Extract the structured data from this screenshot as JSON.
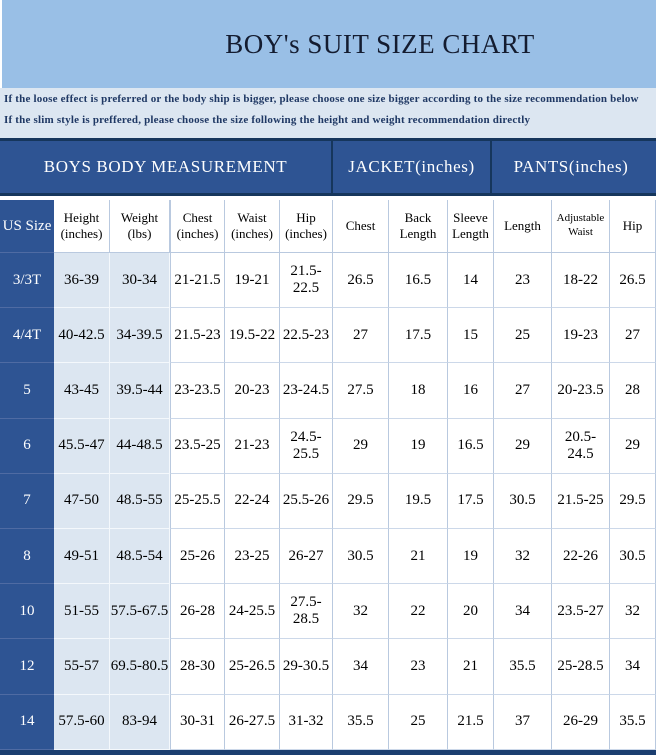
{
  "page": {
    "title": "BOY's SUIT SIZE CHART"
  },
  "notes": {
    "line1": "If the loose effect is preferred or the body ship is bigger, please choose one size bigger according to the size recommendation below",
    "line2": "If the slim style is preffered, please choose the size following the height and weight recommendation directly"
  },
  "colors": {
    "banner_blue": "#99bfe6",
    "notes_bg": "#dce6f1",
    "header_navy": "#2e5493",
    "dark_border": "#16365c",
    "light_cell": "#dce6f1",
    "grid_line": "#b9c9df"
  },
  "table": {
    "groups": [
      "BOYS BODY MEASUREMENT",
      "JACKET(inches)",
      "PANTS(inches)"
    ],
    "columns": [
      "US Size",
      "Height\n(inches)",
      "Weight (lbs)",
      "Chest\n(inches)",
      "Waist\n(inches)",
      "Hip\n(inches)",
      "Chest",
      "Back\nLength",
      "Sleeve\nLength",
      "Length",
      "Adjustable\nWaist",
      "Hip"
    ],
    "rows": [
      [
        "3/3T",
        "36-39",
        "30-34",
        "21-21.5",
        "19-21",
        "21.5-22.5",
        "26.5",
        "16.5",
        "14",
        "23",
        "18-22",
        "26.5"
      ],
      [
        "4/4T",
        "40-42.5",
        "34-39.5",
        "21.5-23",
        "19.5-22",
        "22.5-23",
        "27",
        "17.5",
        "15",
        "25",
        "19-23",
        "27"
      ],
      [
        "5",
        "43-45",
        "39.5-44",
        "23-23.5",
        "20-23",
        "23-24.5",
        "27.5",
        "18",
        "16",
        "27",
        "20-23.5",
        "28"
      ],
      [
        "6",
        "45.5-47",
        "44-48.5",
        "23.5-25",
        "21-23",
        "24.5-25.5",
        "29",
        "19",
        "16.5",
        "29",
        "20.5-24.5",
        "29"
      ],
      [
        "7",
        "47-50",
        "48.5-55",
        "25-25.5",
        "22-24",
        "25.5-26",
        "29.5",
        "19.5",
        "17.5",
        "30.5",
        "21.5-25",
        "29.5"
      ],
      [
        "8",
        "49-51",
        "48.5-54",
        "25-26",
        "23-25",
        "26-27",
        "30.5",
        "21",
        "19",
        "32",
        "22-26",
        "30.5"
      ],
      [
        "10",
        "51-55",
        "57.5-67.5",
        "26-28",
        "24-25.5",
        "27.5-28.5",
        "32",
        "22",
        "20",
        "34",
        "23.5-27",
        "32"
      ],
      [
        "12",
        "55-57",
        "69.5-80.5",
        "28-30",
        "25-26.5",
        "29-30.5",
        "34",
        "23",
        "21",
        "35.5",
        "25-28.5",
        "34"
      ],
      [
        "14",
        "57.5-60",
        "83-94",
        "30-31",
        "26-27.5",
        "31-32",
        "35.5",
        "25",
        "21.5",
        "37",
        "26-29",
        "35.5"
      ]
    ]
  },
  "chart_data": {
    "type": "table",
    "title": "BOY's SUIT SIZE CHART",
    "column_groups": [
      {
        "label": "BOYS BODY MEASUREMENT",
        "span": 6
      },
      {
        "label": "JACKET(inches)",
        "span": 3
      },
      {
        "label": "PANTS(inches)",
        "span": 3
      }
    ],
    "columns": [
      "US Size",
      "Height (inches)",
      "Weight (lbs)",
      "Chest (inches)",
      "Waist (inches)",
      "Hip (inches)",
      "Chest",
      "Back Length",
      "Sleeve Length",
      "Length",
      "Adjustable Waist",
      "Hip"
    ],
    "rows": [
      [
        "3/3T",
        "36-39",
        "30-34",
        "21-21.5",
        "19-21",
        "21.5-22.5",
        "26.5",
        "16.5",
        "14",
        "23",
        "18-22",
        "26.5"
      ],
      [
        "4/4T",
        "40-42.5",
        "34-39.5",
        "21.5-23",
        "19.5-22",
        "22.5-23",
        "27",
        "17.5",
        "15",
        "25",
        "19-23",
        "27"
      ],
      [
        "5",
        "43-45",
        "39.5-44",
        "23-23.5",
        "20-23",
        "23-24.5",
        "27.5",
        "18",
        "16",
        "27",
        "20-23.5",
        "28"
      ],
      [
        "6",
        "45.5-47",
        "44-48.5",
        "23.5-25",
        "21-23",
        "24.5-25.5",
        "29",
        "19",
        "16.5",
        "29",
        "20.5-24.5",
        "29"
      ],
      [
        "7",
        "47-50",
        "48.5-55",
        "25-25.5",
        "22-24",
        "25.5-26",
        "29.5",
        "19.5",
        "17.5",
        "30.5",
        "21.5-25",
        "29.5"
      ],
      [
        "8",
        "49-51",
        "48.5-54",
        "25-26",
        "23-25",
        "26-27",
        "30.5",
        "21",
        "19",
        "32",
        "22-26",
        "30.5"
      ],
      [
        "10",
        "51-55",
        "57.5-67.5",
        "26-28",
        "24-25.5",
        "27.5-28.5",
        "32",
        "22",
        "20",
        "34",
        "23.5-27",
        "32"
      ],
      [
        "12",
        "55-57",
        "69.5-80.5",
        "28-30",
        "25-26.5",
        "29-30.5",
        "34",
        "23",
        "21",
        "35.5",
        "25-28.5",
        "34"
      ],
      [
        "14",
        "57.5-60",
        "83-94",
        "30-31",
        "26-27.5",
        "31-32",
        "35.5",
        "25",
        "21.5",
        "37",
        "26-29",
        "35.5"
      ]
    ]
  }
}
